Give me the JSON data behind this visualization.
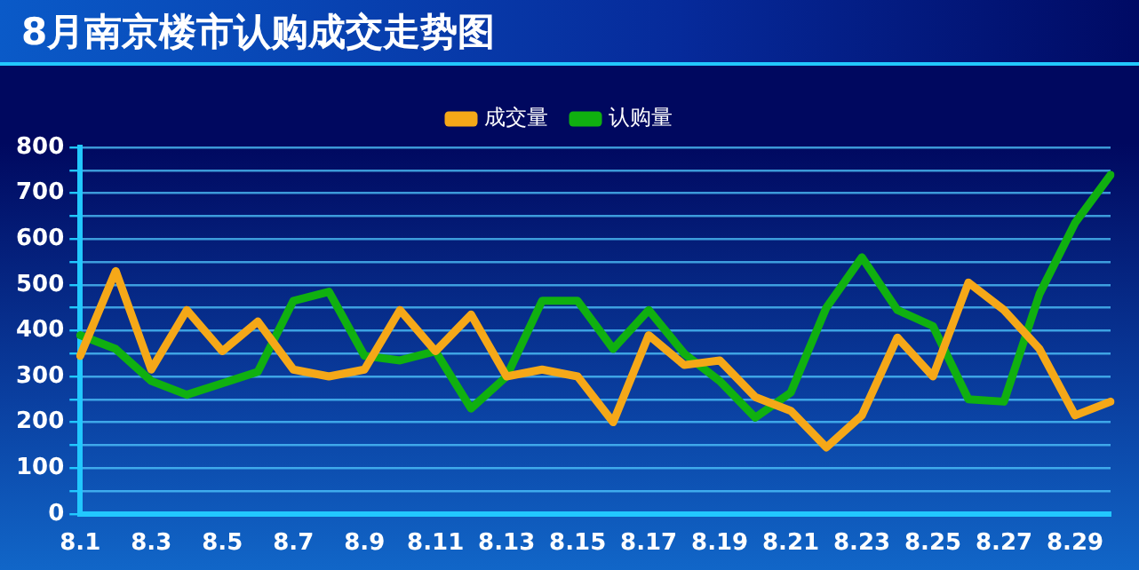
{
  "chart_data": {
    "type": "line",
    "title": "8月南京楼市认购成交走势图",
    "categories": [
      "8.1",
      null,
      "8.3",
      null,
      "8.5",
      null,
      "8.7",
      null,
      "8.9",
      null,
      "8.11",
      null,
      "8.13",
      null,
      "8.15",
      null,
      "8.17",
      null,
      "8.19",
      null,
      "8.21",
      null,
      "8.23",
      null,
      "8.25",
      null,
      "8.27",
      null,
      "8.29",
      null
    ],
    "series": [
      {
        "name": "成交量",
        "color": "#f5a818",
        "values": [
          345,
          530,
          315,
          445,
          355,
          420,
          315,
          300,
          315,
          445,
          355,
          435,
          300,
          315,
          300,
          200,
          390,
          325,
          335,
          255,
          225,
          145,
          215,
          385,
          300,
          505,
          445,
          360,
          215,
          245
        ]
      },
      {
        "name": "认购量",
        "color": "#10b010",
        "values": [
          390,
          360,
          290,
          260,
          285,
          310,
          465,
          485,
          345,
          335,
          355,
          230,
          300,
          465,
          465,
          360,
          445,
          350,
          290,
          210,
          265,
          450,
          560,
          445,
          410,
          250,
          245,
          480,
          635,
          740
        ]
      }
    ],
    "ylim": [
      0,
      800
    ],
    "yticks": [
      0,
      {
        "value": 50,
        "label": null
      },
      100,
      {
        "value": 150,
        "label": null
      },
      200,
      {
        "value": 250,
        "label": null
      },
      300,
      {
        "value": 350,
        "label": null
      },
      400,
      {
        "value": 450,
        "label": null
      },
      500,
      {
        "value": 550,
        "label": null
      },
      600,
      {
        "value": 650,
        "label": null
      },
      700,
      {
        "value": 750,
        "label": null
      },
      800
    ],
    "grid": "y",
    "legend": "top",
    "marker": "none",
    "line_style": "solid"
  }
}
